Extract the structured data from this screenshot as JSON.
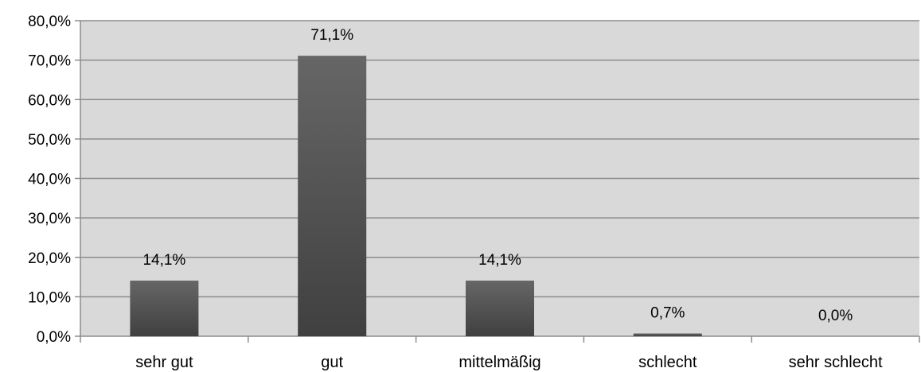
{
  "chart_data": {
    "type": "bar",
    "title": "",
    "xlabel": "",
    "ylabel": "",
    "categories": [
      "sehr gut",
      "gut",
      "mittelmäßig",
      "schlecht",
      "sehr schlecht"
    ],
    "values": [
      14.1,
      71.1,
      14.1,
      0.7,
      0.0
    ],
    "data_labels": [
      "14,1%",
      "71,1%",
      "14,1%",
      "0,7%",
      "0,0%"
    ],
    "ylim": [
      0,
      80
    ],
    "yticks": [
      0,
      10,
      20,
      30,
      40,
      50,
      60,
      70,
      80
    ],
    "ytick_labels": [
      "0,0%",
      "10,0%",
      "20,0%",
      "30,0%",
      "40,0%",
      "50,0%",
      "60,0%",
      "70,0%",
      "80,0%"
    ],
    "grid": true,
    "legend": "none",
    "colors": {
      "plot_background": "#d9d9d9",
      "bar_top": "#666666",
      "bar_bottom": "#404040",
      "gridline": "#8c8c8c"
    }
  }
}
